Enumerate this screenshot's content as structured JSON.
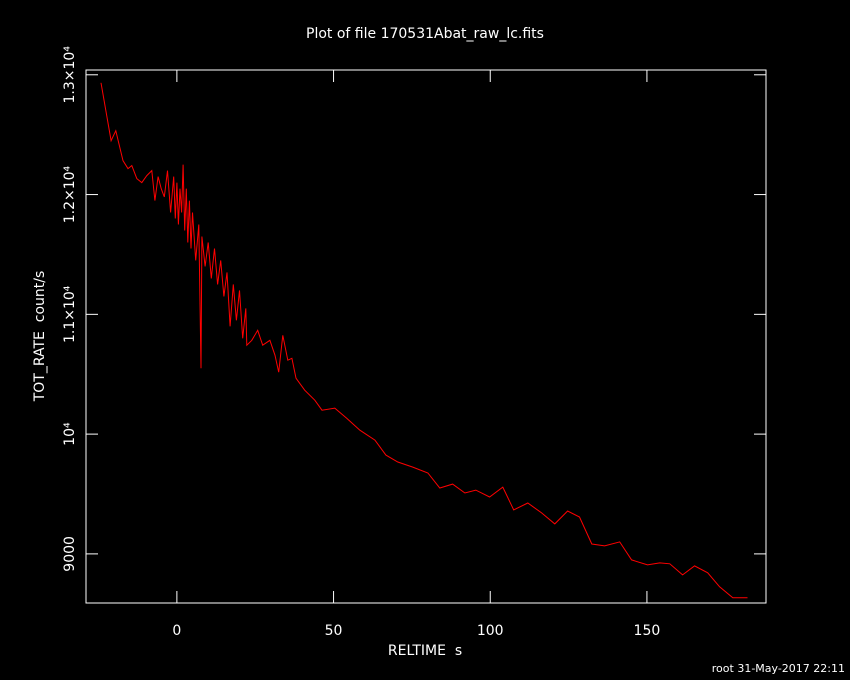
{
  "chart_data": {
    "type": "line",
    "title": "Plot of file 170531Abat_raw_lc.fits",
    "x_label": "RELTIME  s",
    "y_label": "TOT_RATE  count/s",
    "footer": "root 31-May-2017 22:11",
    "xlim": [
      -29,
      188
    ],
    "ylim": [
      8590,
      13040
    ],
    "xticks": [
      0,
      50,
      100,
      150
    ],
    "yticks": [
      9000,
      {
        "value": 10000,
        "label": "10⁴"
      },
      {
        "value": 11000,
        "label": "1.1×10⁴"
      },
      {
        "value": 12000,
        "label": "1.2×10⁴"
      },
      {
        "value": 13000,
        "label": "1.3×10⁴"
      }
    ],
    "series": [
      {
        "color": "#ff0000",
        "x": [
          -24.2,
          -21,
          -19.5,
          -17.2,
          -15.6,
          -14.4,
          -12.8,
          -11.2,
          -9.6,
          -8,
          -7,
          -6,
          -5,
          -4,
          -3,
          -2,
          -1,
          -0.5,
          0,
          0.5,
          1,
          1.5,
          2,
          2.5,
          3,
          3.5,
          4,
          4.5,
          5,
          6,
          7,
          7.7,
          8,
          9,
          10,
          11,
          12,
          13,
          14,
          15,
          16,
          17,
          18,
          19,
          20,
          21,
          22,
          22.3,
          23.9,
          25.8,
          27.4,
          29.7,
          31.3,
          32.5,
          33.8,
          35.4,
          36.7,
          38,
          40.8,
          44,
          46.3,
          50.4,
          54.2,
          58.4,
          63.2,
          66.7,
          70.5,
          75.3,
          80.1,
          83.9,
          88,
          91.9,
          95.4,
          99.8,
          104,
          107.5,
          112,
          116.4,
          120.6,
          124.7,
          128.5,
          132.4,
          136.5,
          141.3,
          145.1,
          150.2,
          154.1,
          157.3,
          161.4,
          165.2,
          169.4,
          173.2,
          177.4,
          182.1
        ],
        "values": [
          12933,
          12450,
          12533,
          12283,
          12217,
          12242,
          12133,
          12100,
          12158,
          12200,
          11950,
          12150,
          12050,
          11980,
          12200,
          11850,
          12150,
          11800,
          12100,
          11750,
          12050,
          11850,
          12250,
          11700,
          12050,
          11600,
          11950,
          11550,
          11850,
          11450,
          11750,
          10550,
          11650,
          11400,
          11600,
          11300,
          11550,
          11250,
          11450,
          11150,
          11350,
          10900,
          11250,
          10950,
          11200,
          10800,
          11050,
          10742,
          10783,
          10867,
          10742,
          10783,
          10658,
          10517,
          10825,
          10617,
          10633,
          10467,
          10367,
          10283,
          10200,
          10217,
          10133,
          10033,
          9950,
          9825,
          9767,
          9725,
          9675,
          9550,
          9583,
          9508,
          9533,
          9475,
          9558,
          9367,
          9425,
          9342,
          9250,
          9358,
          9308,
          9083,
          9067,
          9100,
          8950,
          8908,
          8925,
          8917,
          8825,
          8900,
          8842,
          8725,
          8633,
          8633
        ]
      }
    ]
  }
}
